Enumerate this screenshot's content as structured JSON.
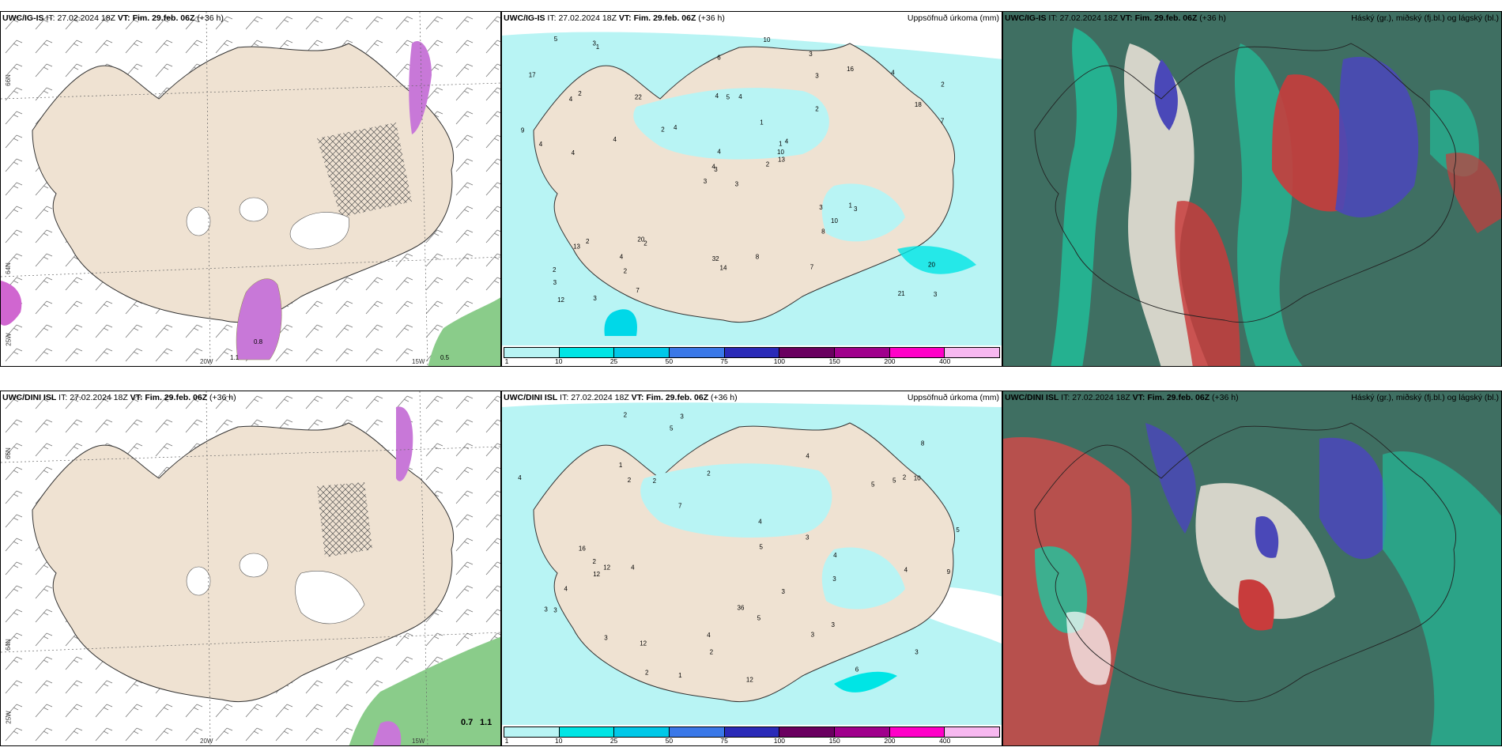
{
  "panels": [
    {
      "id": "tl",
      "model": "UWC/IG-IS",
      "it_label": "IT:",
      "it": "27.02.2024 18Z",
      "vt_label": "VT:",
      "vt": "Fim. 29.feb. 06Z",
      "lead": "(+36 h)",
      "right_title": ""
    },
    {
      "id": "tm",
      "model": "UWC/IG-IS",
      "it_label": "IT:",
      "it": "27.02.2024 18Z",
      "vt_label": "VT:",
      "vt": "Fim. 29.feb. 06Z",
      "lead": "(+36 h)",
      "right_title": "Uppsöfnuð úrkoma (mm)"
    },
    {
      "id": "tr",
      "model": "UWC/IG-IS",
      "it_label": "IT:",
      "it": "27.02.2024 18Z",
      "vt_label": "VT:",
      "vt": "Fim. 29.feb. 06Z",
      "lead": "(+36 h)",
      "right_title": "Háský (gr.), miðský (fj.bl.) og lágský (bl.)"
    },
    {
      "id": "bl",
      "model": "UWC/DINI ISL",
      "it_label": "IT:",
      "it": "27.02.2024 18Z",
      "vt_label": "VT:",
      "vt": "Fim. 29.feb. 06Z",
      "lead": "(+36 h)",
      "right_title": ""
    },
    {
      "id": "bm",
      "model": "UWC/DINI ISL",
      "it_label": "IT:",
      "it": "27.02.2024 18Z",
      "vt_label": "VT:",
      "vt": "Fim. 29.feb. 06Z",
      "lead": "(+36 h)",
      "right_title": "Uppsöfnuð úrkoma (mm)"
    },
    {
      "id": "br",
      "model": "UWC/DINI ISL",
      "it_label": "IT:",
      "it": "27.02.2024 18Z",
      "vt_label": "VT:",
      "vt": "Fim. 29.feb. 06Z",
      "lead": "(+36 h)",
      "right_title": "Háský (gr.), miðský (fj.bl.) og lágský (bl.)"
    }
  ],
  "axis_labels": {
    "lat66": "66N",
    "lat64": "64N",
    "lon20": "20W",
    "lon15": "15W",
    "lon25": "25W"
  },
  "left_values": {
    "top": [
      "0.8",
      "1.1",
      "0.5"
    ],
    "bottom": [
      "0.7",
      "1.1"
    ]
  },
  "precip_legend": {
    "ticks": [
      "1",
      "10",
      "25",
      "50",
      "75",
      "100",
      "150",
      "200",
      "400"
    ],
    "colors": [
      "#b8f4f4",
      "#00e5e5",
      "#00c8e8",
      "#3a78e8",
      "#2a2ab8",
      "#6a0060",
      "#a0008c",
      "#ff00c8",
      "#f7b8f0"
    ]
  },
  "precip_values": {
    "top": [
      "3",
      "4",
      "3",
      "2",
      "1",
      "2",
      "3",
      "4",
      "3",
      "2",
      "1",
      "3",
      "4",
      "2",
      "3",
      "2",
      "3",
      "4",
      "1",
      "2",
      "4",
      "3",
      "2",
      "5",
      "4",
      "3",
      "2",
      "6",
      "4",
      "3",
      "7",
      "4",
      "32",
      "4",
      "22",
      "16",
      "20",
      "21",
      "20",
      "1",
      "10",
      "2",
      "4",
      "8",
      "7",
      "9",
      "10",
      "12",
      "14",
      "13",
      "13",
      "18",
      "17",
      "10",
      "7",
      "4",
      "3",
      "5",
      "8",
      "4"
    ],
    "bottom": [
      "9",
      "3",
      "5",
      "2",
      "1",
      "2",
      "4",
      "3",
      "5",
      "3",
      "4",
      "2",
      "3",
      "4",
      "3",
      "2",
      "5",
      "3",
      "2",
      "4",
      "3",
      "4",
      "2",
      "1",
      "3",
      "4",
      "5",
      "6",
      "4",
      "2",
      "16",
      "8",
      "12",
      "12",
      "36",
      "10",
      "12",
      "12",
      "3",
      "5",
      "2",
      "4",
      "5",
      "3",
      "7"
    ]
  },
  "colors": {
    "land": "#efe2d2",
    "sea": "#ffffff",
    "precip_light": "#b8f4f4",
    "precip_cyan": "#00e5e5",
    "snow_white": "#ffffff",
    "magenta": "#d66ae0",
    "green": "#88d888",
    "cloud_dark": "#3f6f62",
    "cloud_teal": "#1ec7a0",
    "cloud_red": "#c83c3c",
    "cloud_blue": "#4a48b8"
  }
}
